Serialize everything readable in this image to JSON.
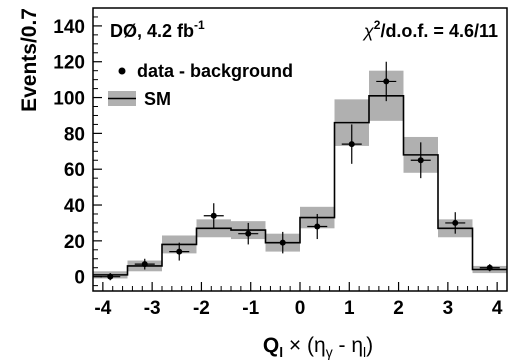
{
  "chart_data": {
    "type": "histogram",
    "experiment_label": "DØ, 4.2 fb",
    "experiment_label_sup": "-1",
    "fit_label_chi": "χ",
    "fit_label_sup": "2",
    "fit_label_rest": "/d.o.f. = 4.6/11",
    "ylabel": "Events/0.7",
    "xlabel_q": "Q",
    "xlabel_q_sub": "l",
    "xlabel_mid": " × (η",
    "xlabel_eta_sub": "γ",
    "xlabel_minus": " - η",
    "xlabel_eta2_sub": "l",
    "xlabel_close": ")",
    "xlim": [
      -4.2,
      4.2
    ],
    "ylim": [
      -8,
      150
    ],
    "x_ticks": [
      "-4",
      "-3",
      "-2",
      "-1",
      "0",
      "1",
      "2",
      "3",
      "4"
    ],
    "y_ticks": [
      "0",
      "20",
      "40",
      "60",
      "80",
      "100",
      "120",
      "140"
    ],
    "legend": {
      "data_label": "data - background",
      "sm_label": "SM",
      "placement": "top-left"
    },
    "colors": {
      "band": "#b0b0b0",
      "line": "#000000",
      "points": "#000000"
    },
    "bin_edges": [
      -4.2,
      -3.5,
      -2.8,
      -2.1,
      -1.4,
      -0.7,
      0.0,
      0.7,
      1.4,
      2.1,
      2.8,
      3.5,
      4.2
    ],
    "sm": [
      1,
      6,
      18,
      27,
      26,
      19,
      33,
      86,
      101,
      68,
      27,
      4
    ],
    "sm_err": [
      2,
      3,
      5,
      5,
      5,
      5,
      6,
      13,
      14,
      10,
      5,
      2
    ],
    "data": [
      {
        "x": -3.85,
        "y": 0,
        "err": 2
      },
      {
        "x": -3.15,
        "y": 7,
        "err": 3
      },
      {
        "x": -2.45,
        "y": 14,
        "err": 5
      },
      {
        "x": -1.75,
        "y": 34,
        "err": 7
      },
      {
        "x": -1.05,
        "y": 24,
        "err": 6
      },
      {
        "x": -0.35,
        "y": 19,
        "err": 6
      },
      {
        "x": 0.35,
        "y": 28,
        "err": 7
      },
      {
        "x": 1.05,
        "y": 74,
        "err": 11
      },
      {
        "x": 1.75,
        "y": 109,
        "err": 11
      },
      {
        "x": 2.45,
        "y": 65,
        "err": 10
      },
      {
        "x": 3.15,
        "y": 30,
        "err": 6
      },
      {
        "x": 3.85,
        "y": 5,
        "err": 2
      }
    ]
  }
}
